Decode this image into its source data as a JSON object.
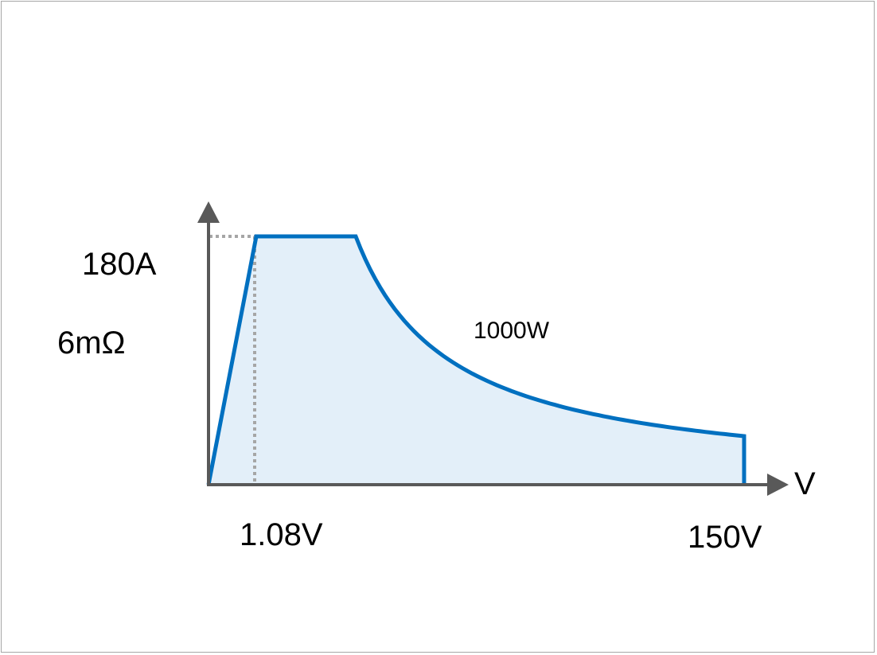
{
  "diagram": {
    "labels": {
      "current_max": "180A",
      "resistance": "6mΩ",
      "power": "1000W",
      "voltage_knee": "1.08V",
      "voltage_max": "150V",
      "x_axis": "V"
    },
    "colors": {
      "curve": "#0070c0",
      "fill": "#e3eff9",
      "axis": "#595959",
      "guide": "#a6a6a6",
      "frame": "#a6a6a6"
    }
  }
}
